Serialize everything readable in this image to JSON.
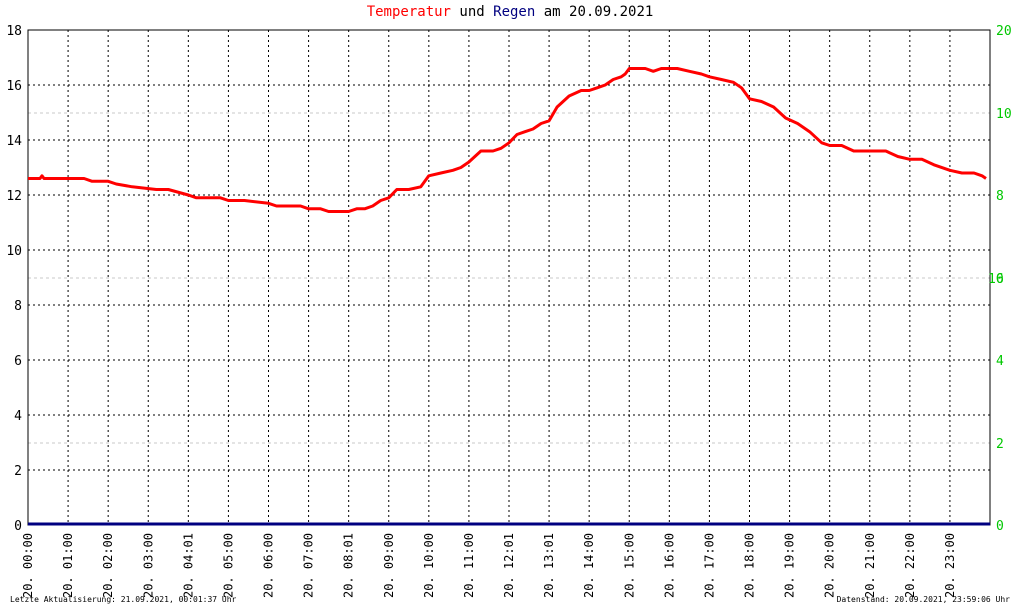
{
  "title": {
    "part1": "Temperatur",
    "part2": " und ",
    "part3": "Regen",
    "part4": " am 20.09.2021"
  },
  "footer": {
    "left": "Letzte Aktualisierung: 21.09.2021, 00:01:37 Uhr",
    "right": "Datenstand: 20.09.2021, 23:59:06 Uhr"
  },
  "colors": {
    "temperature": "#ff0000",
    "rain": "#000080",
    "right_axis": "#00c800",
    "title_temperature": "#ff0000",
    "title_rain": "#000080",
    "grid": "#000000",
    "aux_grid": "#c8c8c8"
  },
  "chart_data": {
    "type": "line",
    "title": "Temperatur und Regen am 20.09.2021",
    "ylim_left": [
      0,
      18
    ],
    "left_ticks": [
      "0",
      "2",
      "4",
      "6",
      "8",
      "10",
      "12",
      "14",
      "16",
      "18"
    ],
    "ylim_right": [
      0,
      20
    ],
    "right_ticks": [
      "0",
      "2",
      "4",
      "6",
      "8",
      "10",
      "20"
    ],
    "x_range_hours": [
      0,
      24
    ],
    "x_tick_labels": [
      "20. 00:00",
      "20. 01:00",
      "20. 02:00",
      "20. 03:00",
      "20. 04:01",
      "20. 05:00",
      "20. 06:00",
      "20. 07:00",
      "20. 08:01",
      "20. 09:00",
      "20. 10:00",
      "20. 11:00",
      "20. 12:01",
      "20. 13:01",
      "20. 14:00",
      "20. 15:00",
      "20. 16:00",
      "20. 17:00",
      "20. 18:00",
      "20. 19:00",
      "20. 20:00",
      "20. 21:00",
      "20. 22:00",
      "20. 23:00"
    ],
    "grid": true,
    "series": [
      {
        "name": "Temperatur",
        "x": [
          0,
          0.3,
          0.35,
          0.4,
          0.5,
          1.4,
          1.6,
          2.0,
          2.2,
          2.6,
          3.2,
          3.5,
          4.0,
          4.2,
          4.8,
          5.0,
          5.4,
          6.0,
          6.2,
          6.8,
          7.0,
          7.3,
          7.5,
          7.8,
          8.0,
          8.2,
          8.4,
          8.6,
          8.8,
          9.0,
          9.2,
          9.5,
          9.8,
          10.0,
          10.3,
          10.6,
          10.8,
          11.0,
          11.3,
          11.6,
          11.8,
          12.0,
          12.2,
          12.4,
          12.6,
          12.8,
          13.0,
          13.2,
          13.5,
          13.8,
          14.0,
          14.2,
          14.4,
          14.6,
          14.8,
          14.9,
          15.0,
          15.2,
          15.4,
          15.6,
          15.8,
          16.0,
          16.2,
          16.5,
          16.8,
          17.0,
          17.3,
          17.6,
          17.8,
          18.0,
          18.3,
          18.6,
          18.9,
          19.2,
          19.5,
          19.8,
          20.0,
          20.3,
          20.6,
          21.0,
          21.4,
          21.7,
          22.0,
          22.3,
          22.6,
          23.0,
          23.3,
          23.6,
          23.8,
          23.9
        ],
        "y": [
          12.6,
          12.6,
          12.7,
          12.6,
          12.6,
          12.6,
          12.5,
          12.5,
          12.4,
          12.3,
          12.2,
          12.2,
          12.0,
          11.9,
          11.9,
          11.8,
          11.8,
          11.7,
          11.6,
          11.6,
          11.5,
          11.5,
          11.4,
          11.4,
          11.4,
          11.5,
          11.5,
          11.6,
          11.8,
          11.9,
          12.2,
          12.2,
          12.3,
          12.7,
          12.8,
          12.9,
          13.0,
          13.2,
          13.6,
          13.6,
          13.7,
          13.9,
          14.2,
          14.3,
          14.4,
          14.6,
          14.7,
          15.2,
          15.6,
          15.8,
          15.8,
          15.9,
          16.0,
          16.2,
          16.3,
          16.4,
          16.6,
          16.6,
          16.6,
          16.5,
          16.6,
          16.6,
          16.6,
          16.5,
          16.4,
          16.3,
          16.2,
          16.1,
          15.9,
          15.5,
          15.4,
          15.2,
          14.8,
          14.6,
          14.3,
          13.9,
          13.8,
          13.8,
          13.6,
          13.6,
          13.6,
          13.4,
          13.3,
          13.3,
          13.1,
          12.9,
          12.8,
          12.8,
          12.7,
          12.6
        ]
      },
      {
        "name": "Regen",
        "x": [
          0,
          24
        ],
        "y": [
          0,
          0
        ]
      }
    ]
  }
}
